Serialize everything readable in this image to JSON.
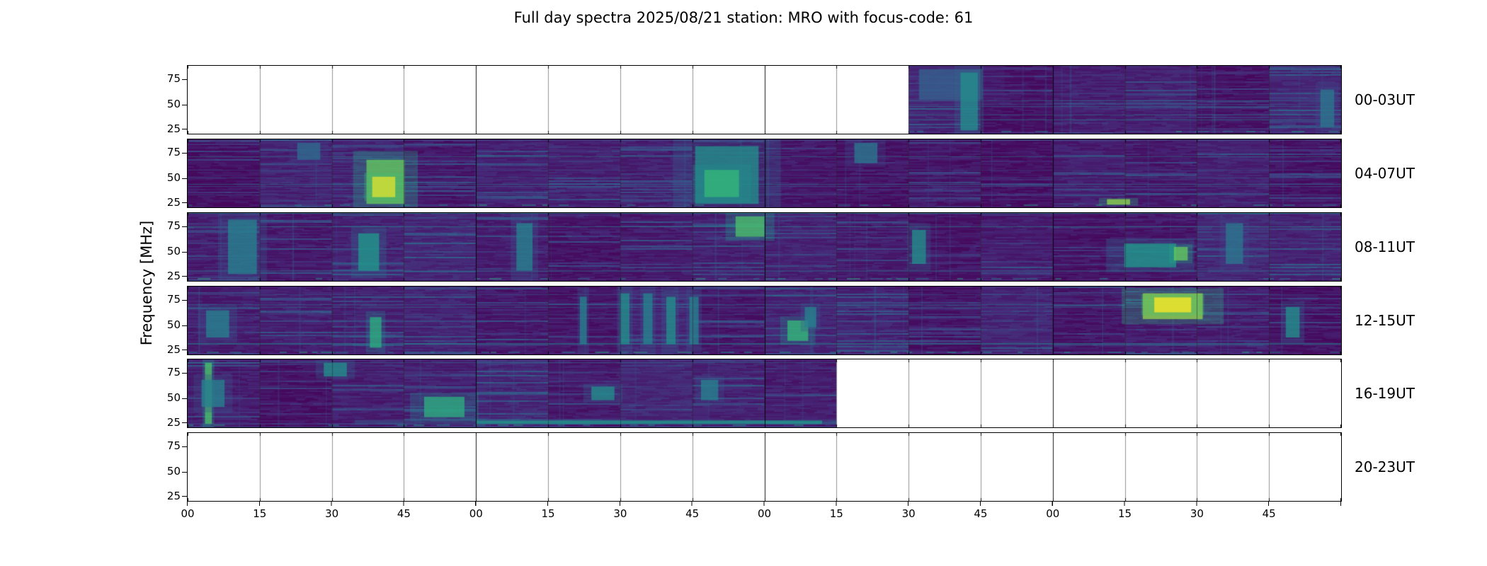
{
  "figure": {
    "title": "Full day spectra 2025/08/21 station: MRO with focus-code: 61",
    "date": "2025/08/21",
    "station": "MRO",
    "focus_code": "61",
    "background": "#ffffff"
  },
  "chart_data": {
    "type": "heatmap",
    "subtype": "spectrogram-strip-grid",
    "title": "Full day spectra 2025/08/21 station: MRO with focus-code: 61",
    "ylabel": "Frequency [MHz]",
    "yticks": [
      75,
      50,
      25
    ],
    "ylim_mhz": [
      20,
      88
    ],
    "xticklabels": [
      "00",
      "15",
      "30",
      "45",
      "00",
      "15",
      "30",
      "45",
      "00",
      "15",
      "30",
      "45",
      "00",
      "15",
      "30",
      "45"
    ],
    "x_unit": "minutes past hour; each row spans 4 hours split into 16 fifteen-minute panels",
    "segments_per_row": 16,
    "colormap": "viridis",
    "no_data_color": "#ffffff",
    "rows": [
      {
        "label": "00-03UT",
        "data_start_frac": 0.625,
        "data_end_frac": 1.0,
        "features": [
          {
            "x": 0.634,
            "y": 0.05,
            "w": 0.055,
            "h": 0.45,
            "v": 0.35
          },
          {
            "x": 0.67,
            "y": 0.1,
            "w": 0.015,
            "h": 0.85,
            "v": 0.55
          },
          {
            "x": 0.982,
            "y": 0.35,
            "w": 0.012,
            "h": 0.55,
            "v": 0.45
          }
        ]
      },
      {
        "label": "04-07UT",
        "data_start_frac": 0.0,
        "data_end_frac": 1.0,
        "features": [
          {
            "x": 0.095,
            "y": 0.05,
            "w": 0.02,
            "h": 0.25,
            "v": 0.4
          },
          {
            "x": 0.155,
            "y": 0.3,
            "w": 0.033,
            "h": 0.65,
            "v": 0.85
          },
          {
            "x": 0.16,
            "y": 0.55,
            "w": 0.02,
            "h": 0.3,
            "v": 0.97
          },
          {
            "x": 0.44,
            "y": 0.1,
            "w": 0.055,
            "h": 0.85,
            "v": 0.55
          },
          {
            "x": 0.448,
            "y": 0.45,
            "w": 0.03,
            "h": 0.4,
            "v": 0.75
          },
          {
            "x": 0.578,
            "y": 0.05,
            "w": 0.02,
            "h": 0.3,
            "v": 0.45
          },
          {
            "x": 0.797,
            "y": 0.88,
            "w": 0.02,
            "h": 0.08,
            "v": 0.9
          }
        ]
      },
      {
        "label": "08-11UT",
        "data_start_frac": 0.0,
        "data_end_frac": 1.0,
        "features": [
          {
            "x": 0.035,
            "y": 0.1,
            "w": 0.025,
            "h": 0.8,
            "v": 0.5
          },
          {
            "x": 0.148,
            "y": 0.3,
            "w": 0.018,
            "h": 0.55,
            "v": 0.6
          },
          {
            "x": 0.285,
            "y": 0.15,
            "w": 0.014,
            "h": 0.7,
            "v": 0.5
          },
          {
            "x": 0.475,
            "y": 0.05,
            "w": 0.025,
            "h": 0.3,
            "v": 0.8
          },
          {
            "x": 0.628,
            "y": 0.25,
            "w": 0.012,
            "h": 0.5,
            "v": 0.55
          },
          {
            "x": 0.812,
            "y": 0.45,
            "w": 0.045,
            "h": 0.35,
            "v": 0.6
          },
          {
            "x": 0.855,
            "y": 0.5,
            "w": 0.012,
            "h": 0.2,
            "v": 0.85
          },
          {
            "x": 0.9,
            "y": 0.15,
            "w": 0.015,
            "h": 0.6,
            "v": 0.45
          }
        ]
      },
      {
        "label": "12-15UT",
        "data_start_frac": 0.0,
        "data_end_frac": 1.0,
        "features": [
          {
            "x": 0.016,
            "y": 0.35,
            "w": 0.02,
            "h": 0.4,
            "v": 0.5
          },
          {
            "x": 0.158,
            "y": 0.45,
            "w": 0.01,
            "h": 0.45,
            "v": 0.7
          },
          {
            "x": 0.34,
            "y": 0.15,
            "w": 0.006,
            "h": 0.7,
            "v": 0.5
          },
          {
            "x": 0.375,
            "y": 0.1,
            "w": 0.008,
            "h": 0.75,
            "v": 0.55
          },
          {
            "x": 0.395,
            "y": 0.1,
            "w": 0.008,
            "h": 0.75,
            "v": 0.5
          },
          {
            "x": 0.415,
            "y": 0.15,
            "w": 0.008,
            "h": 0.7,
            "v": 0.55
          },
          {
            "x": 0.435,
            "y": 0.15,
            "w": 0.008,
            "h": 0.7,
            "v": 0.5
          },
          {
            "x": 0.52,
            "y": 0.5,
            "w": 0.018,
            "h": 0.3,
            "v": 0.75
          },
          {
            "x": 0.535,
            "y": 0.3,
            "w": 0.01,
            "h": 0.3,
            "v": 0.5
          },
          {
            "x": 0.828,
            "y": 0.1,
            "w": 0.052,
            "h": 0.38,
            "v": 0.9
          },
          {
            "x": 0.838,
            "y": 0.16,
            "w": 0.032,
            "h": 0.22,
            "v": 1.0
          },
          {
            "x": 0.952,
            "y": 0.3,
            "w": 0.012,
            "h": 0.45,
            "v": 0.55
          }
        ]
      },
      {
        "label": "16-19UT",
        "data_start_frac": 0.0,
        "data_end_frac": 0.5625,
        "features": [
          {
            "x": 0.015,
            "y": 0.05,
            "w": 0.006,
            "h": 0.9,
            "v": 0.8
          },
          {
            "x": 0.012,
            "y": 0.3,
            "w": 0.02,
            "h": 0.4,
            "v": 0.5
          },
          {
            "x": 0.118,
            "y": 0.05,
            "w": 0.02,
            "h": 0.2,
            "v": 0.55
          },
          {
            "x": 0.205,
            "y": 0.55,
            "w": 0.035,
            "h": 0.3,
            "v": 0.7
          },
          {
            "x": 0.25,
            "y": 0.9,
            "w": 0.3,
            "h": 0.05,
            "v": 0.6
          },
          {
            "x": 0.35,
            "y": 0.4,
            "w": 0.02,
            "h": 0.2,
            "v": 0.55
          },
          {
            "x": 0.445,
            "y": 0.3,
            "w": 0.015,
            "h": 0.3,
            "v": 0.5
          }
        ]
      },
      {
        "label": "20-23UT",
        "data_start_frac": null,
        "data_end_frac": null,
        "features": []
      }
    ]
  }
}
